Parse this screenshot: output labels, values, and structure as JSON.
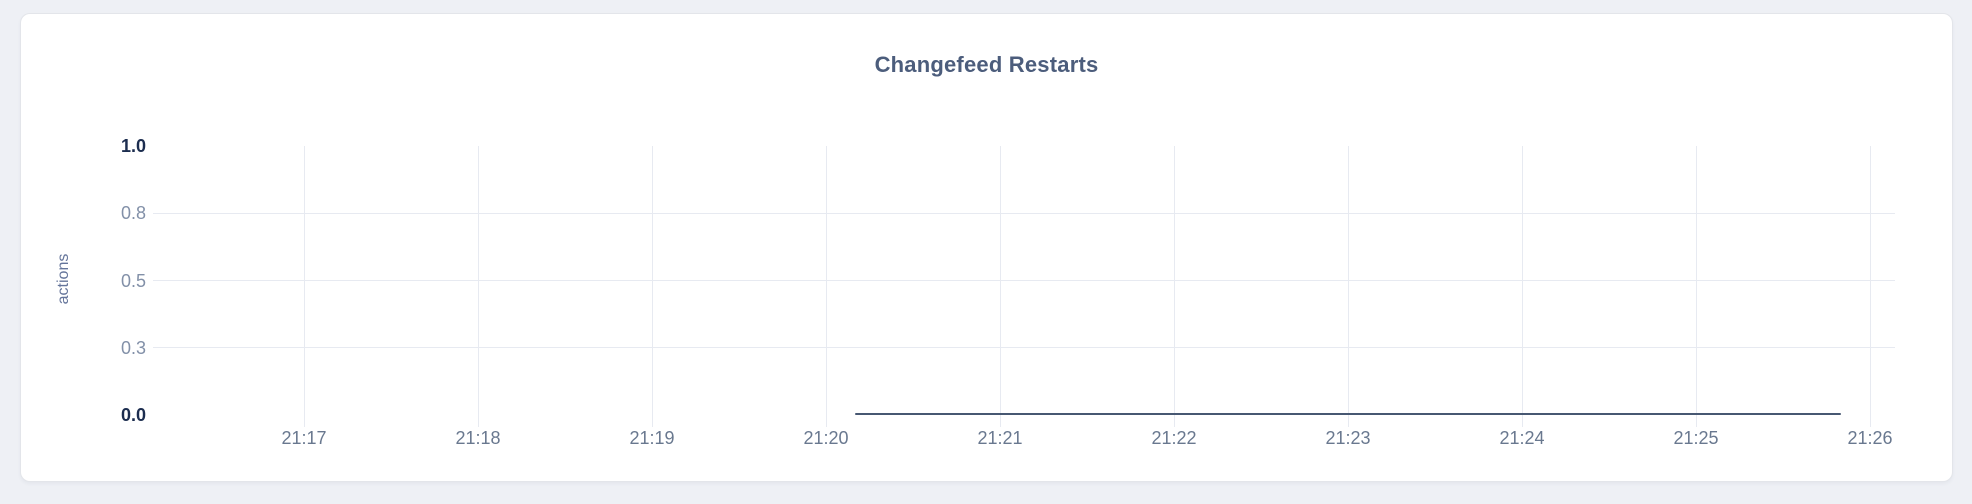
{
  "colors": {
    "page_background": "#eef0f5",
    "card_background": "#ffffff",
    "card_border": "#e3e5ea",
    "title": "#4c5d7c",
    "axis_label": "#64749a",
    "tick_muted": "#8290a8",
    "tick_strong": "#1c2d4f",
    "time_tick": "#69788f",
    "gridline": "#e7eaf1",
    "series_line": "#475872"
  },
  "chart_data": {
    "type": "line",
    "title": "Changefeed Restarts",
    "xlabel": "",
    "ylabel": "actions",
    "ylim": [
      0,
      1.0
    ],
    "grid": "on",
    "legend": "none",
    "y_ticks": [
      {
        "label": "1.0",
        "value": 1.0,
        "bold": true,
        "grid": false
      },
      {
        "label": "0.8",
        "value": 0.75,
        "bold": false,
        "grid": true
      },
      {
        "label": "0.5",
        "value": 0.5,
        "bold": false,
        "grid": true
      },
      {
        "label": "0.3",
        "value": 0.25,
        "bold": false,
        "grid": true
      },
      {
        "label": "0.0",
        "value": 0.0,
        "bold": true,
        "grid": false
      }
    ],
    "x_ticks": [
      "21:17",
      "21:18",
      "21:19",
      "21:20",
      "21:21",
      "21:22",
      "21:23",
      "21:24",
      "21:25",
      "21:26"
    ],
    "series": [
      {
        "name": "changefeed_restarts",
        "value": 0,
        "start": "21:20:10",
        "end": "21:25:50"
      }
    ]
  }
}
